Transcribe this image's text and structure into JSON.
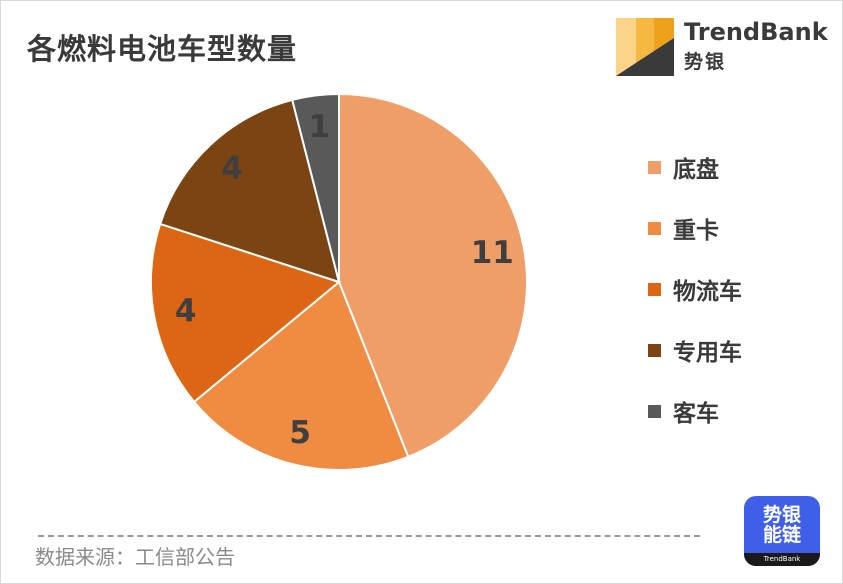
{
  "title": "各燃料电池车型数量",
  "brand": {
    "name": "TrendBank",
    "cn": "势银"
  },
  "source": "数据来源：工信部公告",
  "app_icon": {
    "line1": "势银",
    "line2": "能链",
    "footer": "TrendBank"
  },
  "chart_data": {
    "type": "pie",
    "categories": [
      "底盘",
      "重卡",
      "物流车",
      "专用车",
      "客车"
    ],
    "values": [
      11,
      5,
      4,
      4,
      1
    ],
    "colors": [
      "#F09E67",
      "#EF8C42",
      "#DC6614",
      "#7A4512",
      "#595959"
    ],
    "data_labels": [
      "11",
      "5",
      "4",
      "4",
      "1"
    ],
    "legend_position": "right",
    "start_angle": "12 o'clock, clockwise"
  }
}
